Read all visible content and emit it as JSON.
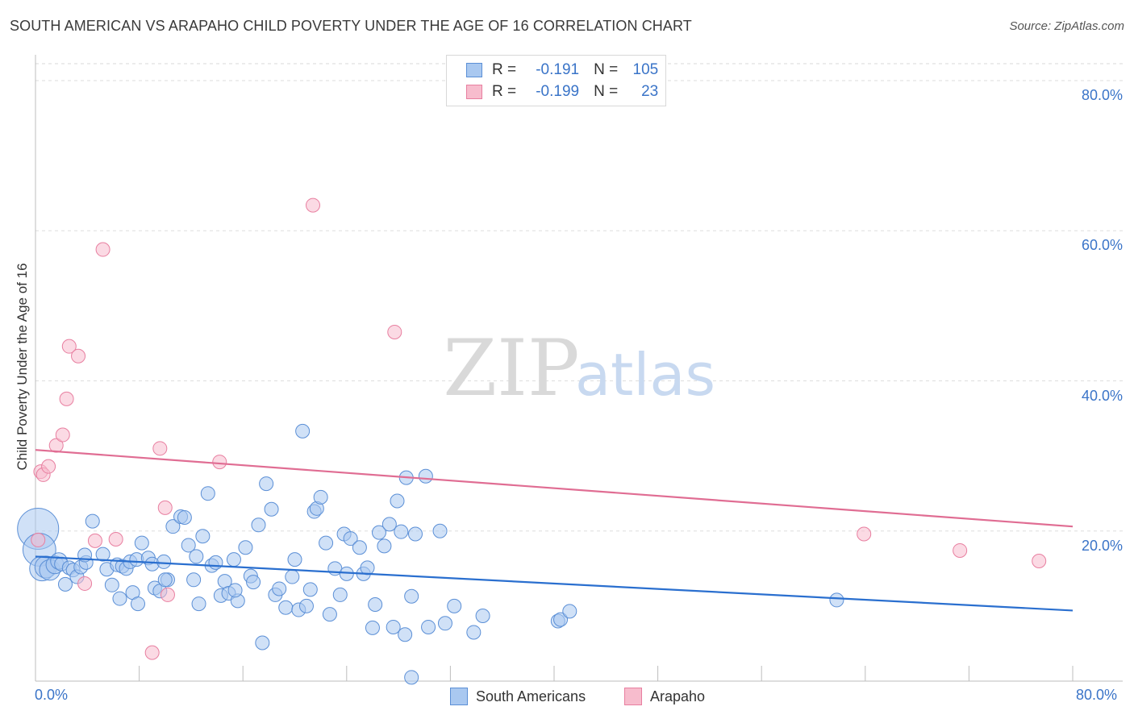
{
  "header": {
    "title": "SOUTH AMERICAN VS ARAPAHO CHILD POVERTY UNDER THE AGE OF 16 CORRELATION CHART",
    "source": "Source: ZipAtlas.com"
  },
  "watermark": {
    "zip": "ZIP",
    "atlas": "atlas"
  },
  "legend": {
    "rows": [
      {
        "r_label": "R =",
        "r_value": "-0.191",
        "n_label": "N =",
        "n_value": "105",
        "color": "#a9c8f0",
        "border": "#5b8fd6"
      },
      {
        "r_label": "R =",
        "r_value": "-0.199",
        "n_label": "N =",
        "n_value": "23",
        "color": "#f7bccd",
        "border": "#e87fa0"
      }
    ]
  },
  "bottom_legend": {
    "items": [
      {
        "label": "South Americans",
        "color": "#a9c8f0",
        "border": "#5b8fd6"
      },
      {
        "label": "Arapaho",
        "color": "#f7bccd",
        "border": "#e87fa0"
      }
    ]
  },
  "chart_data": {
    "type": "scatter",
    "title": "SOUTH AMERICAN VS ARAPAHO CHILD POVERTY UNDER THE AGE OF 16 CORRELATION CHART",
    "xlabel": "",
    "ylabel": "Child Poverty Under the Age of 16",
    "xlim": [
      0,
      80
    ],
    "ylim": [
      0,
      80
    ],
    "x_tick_labels": [
      "0.0%",
      "80.0%"
    ],
    "y_tick_labels": [
      "80.0%",
      "60.0%",
      "40.0%",
      "20.0%"
    ],
    "y_ticks": [
      80,
      60,
      40,
      20
    ],
    "grid": true,
    "legend_position": "top-center",
    "series": [
      {
        "name": "South Americans",
        "color": "#5b8fd6",
        "fill": "#a9c8f0",
        "trend": {
          "x": [
            0,
            80
          ],
          "y": [
            16.6,
            9.4
          ],
          "color": "#2a6fcf"
        },
        "points": [
          [
            0.2,
            20.3,
            3
          ],
          [
            0.3,
            17.5,
            2.4
          ],
          [
            0.5,
            15.0,
            1.8
          ],
          [
            0.8,
            15.2,
            1.6
          ],
          [
            1.1,
            14.8,
            1.5
          ],
          [
            1.5,
            15.5,
            1.3
          ],
          [
            1.8,
            16.0,
            1.2
          ],
          [
            2.0,
            15.6,
            1
          ],
          [
            2.3,
            12.9,
            1
          ],
          [
            2.6,
            15.1,
            1
          ],
          [
            2.9,
            14.8,
            1
          ],
          [
            3.2,
            13.9,
            1
          ],
          [
            3.5,
            15.2,
            1
          ],
          [
            3.9,
            15.8,
            1
          ],
          [
            4.4,
            21.3,
            1
          ],
          [
            5.2,
            16.9,
            1
          ],
          [
            5.5,
            14.9,
            1
          ],
          [
            5.9,
            12.8,
            1
          ],
          [
            6.3,
            15.5,
            1
          ],
          [
            6.7,
            15.3,
            1
          ],
          [
            7.0,
            15.0,
            1
          ],
          [
            7.3,
            15.9,
            1
          ],
          [
            7.8,
            16.2,
            1
          ],
          [
            7.5,
            11.8,
            1
          ],
          [
            7.9,
            10.3,
            1
          ],
          [
            8.2,
            18.4,
            1
          ],
          [
            8.7,
            16.4,
            1
          ],
          [
            9.0,
            15.6,
            1
          ],
          [
            9.2,
            12.4,
            1
          ],
          [
            9.6,
            12.0,
            1
          ],
          [
            9.9,
            15.9,
            1
          ],
          [
            10.2,
            13.5,
            1
          ],
          [
            10.6,
            20.6,
            1
          ],
          [
            11.2,
            21.9,
            1
          ],
          [
            11.5,
            21.8,
            1
          ],
          [
            11.8,
            18.1,
            1
          ],
          [
            12.2,
            13.5,
            1
          ],
          [
            12.4,
            16.6,
            1
          ],
          [
            12.6,
            10.3,
            1
          ],
          [
            12.9,
            19.3,
            1
          ],
          [
            13.3,
            25.0,
            1
          ],
          [
            13.6,
            15.4,
            1
          ],
          [
            13.9,
            15.8,
            1
          ],
          [
            14.3,
            11.4,
            1
          ],
          [
            14.6,
            13.3,
            1
          ],
          [
            14.9,
            11.7,
            1
          ],
          [
            15.3,
            16.2,
            1
          ],
          [
            15.6,
            10.7,
            1
          ],
          [
            15.4,
            12.1,
            1
          ],
          [
            16.2,
            17.8,
            1
          ],
          [
            16.6,
            14.0,
            1
          ],
          [
            16.8,
            13.2,
            1
          ],
          [
            17.2,
            20.8,
            1
          ],
          [
            17.5,
            5.1,
            1
          ],
          [
            17.8,
            26.3,
            1
          ],
          [
            18.2,
            22.9,
            1
          ],
          [
            18.5,
            11.5,
            1
          ],
          [
            18.8,
            12.3,
            1
          ],
          [
            19.3,
            9.8,
            1
          ],
          [
            19.8,
            13.9,
            1
          ],
          [
            20.0,
            16.2,
            1
          ],
          [
            20.3,
            9.5,
            1
          ],
          [
            20.6,
            33.3,
            1
          ],
          [
            20.9,
            10.0,
            1
          ],
          [
            21.2,
            12.2,
            1
          ],
          [
            21.5,
            22.6,
            1
          ],
          [
            21.7,
            23.0,
            1
          ],
          [
            22.0,
            24.5,
            1
          ],
          [
            22.4,
            18.4,
            1
          ],
          [
            22.7,
            8.9,
            1
          ],
          [
            23.1,
            15.0,
            1
          ],
          [
            23.5,
            11.5,
            1
          ],
          [
            23.8,
            19.6,
            1
          ],
          [
            24.0,
            14.3,
            1
          ],
          [
            24.3,
            19.0,
            1
          ],
          [
            25.0,
            17.8,
            1
          ],
          [
            25.3,
            14.3,
            1
          ],
          [
            25.6,
            15.1,
            1
          ],
          [
            26.0,
            7.1,
            1
          ],
          [
            26.2,
            10.2,
            1
          ],
          [
            26.5,
            19.8,
            1
          ],
          [
            26.9,
            18.0,
            1
          ],
          [
            27.3,
            20.9,
            1
          ],
          [
            27.6,
            7.2,
            1
          ],
          [
            27.9,
            24.0,
            1
          ],
          [
            28.2,
            19.9,
            1
          ],
          [
            28.5,
            6.2,
            1
          ],
          [
            28.6,
            27.1,
            1
          ],
          [
            29.0,
            11.3,
            1
          ],
          [
            29.3,
            19.6,
            1
          ],
          [
            30.1,
            27.3,
            1
          ],
          [
            30.3,
            7.2,
            1
          ],
          [
            31.2,
            20.0,
            1
          ],
          [
            31.6,
            7.7,
            1
          ],
          [
            32.3,
            10.0,
            1
          ],
          [
            33.8,
            6.5,
            1
          ],
          [
            34.5,
            8.7,
            1
          ],
          [
            40.3,
            8.0,
            1
          ],
          [
            40.5,
            8.2,
            1
          ],
          [
            41.2,
            9.3,
            1
          ],
          [
            29.0,
            0.5,
            1
          ],
          [
            61.8,
            10.8,
            1
          ],
          [
            3.8,
            16.8,
            1
          ],
          [
            10.0,
            13.5,
            1
          ],
          [
            6.5,
            11.0,
            1
          ]
        ]
      },
      {
        "name": "Arapaho",
        "color": "#e87fa0",
        "fill": "#f7bccd",
        "trend": {
          "x": [
            0,
            80
          ],
          "y": [
            30.8,
            20.6
          ],
          "color": "#e06d93"
        },
        "points": [
          [
            0.2,
            18.8
          ],
          [
            0.4,
            27.9
          ],
          [
            0.6,
            27.5
          ],
          [
            1.0,
            28.6
          ],
          [
            1.6,
            31.4
          ],
          [
            2.1,
            32.8
          ],
          [
            2.4,
            37.6
          ],
          [
            2.6,
            44.6
          ],
          [
            3.3,
            43.3
          ],
          [
            3.8,
            13.0
          ],
          [
            4.6,
            18.7
          ],
          [
            5.2,
            57.5
          ],
          [
            6.2,
            18.9
          ],
          [
            9.0,
            3.8
          ],
          [
            9.6,
            31.0
          ],
          [
            10.0,
            23.1
          ],
          [
            10.2,
            11.5
          ],
          [
            14.2,
            29.2
          ],
          [
            21.4,
            63.4
          ],
          [
            27.7,
            46.5
          ],
          [
            63.9,
            19.6
          ],
          [
            71.3,
            17.4
          ],
          [
            77.4,
            16.0
          ]
        ]
      }
    ]
  }
}
